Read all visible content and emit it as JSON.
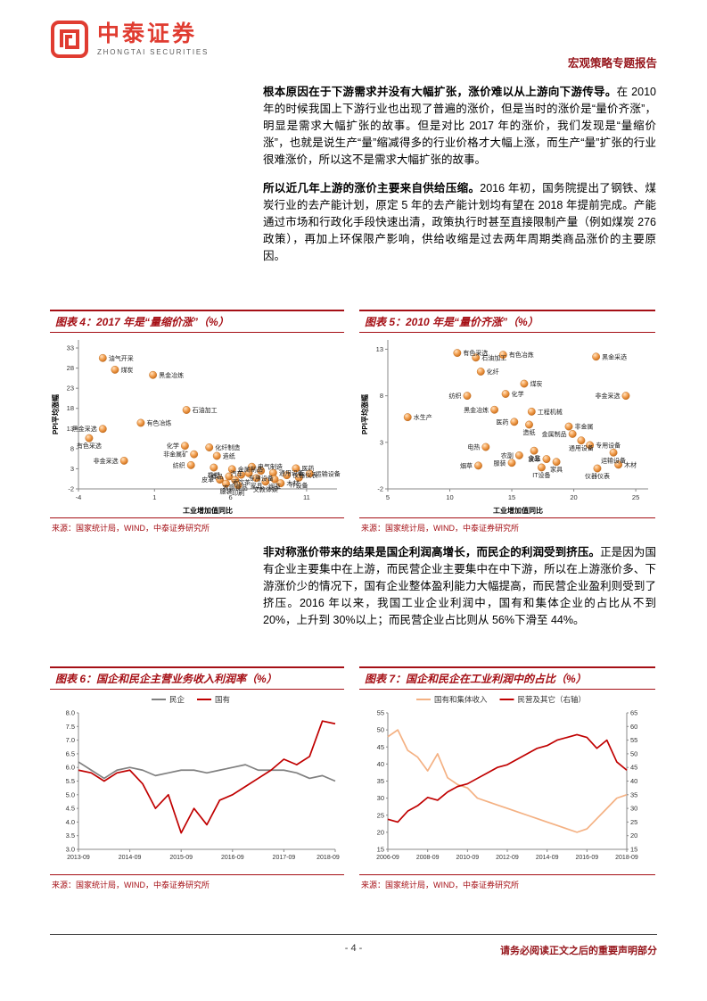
{
  "header": {
    "brand_cn": "中泰证券",
    "brand_en": "ZHONGTAI SECURITIES",
    "report_type": "宏观策略专题报告"
  },
  "paragraphs": [
    {
      "lead": "根本原因在于下游需求并没有大幅扩张，涨价难以从上游向下游传导。",
      "rest": "在 2010 年的时候我国上下游行业也出现了普遍的涨价，但是当时的涨价是“量价齐涨”，明显是需求大幅扩张的故事。但是对比 2017 年的涨价，我们发现是“量缩价涨”，也就是说生产“量”缩减得多的行业价格才大幅上涨，而生产“量”扩张的行业很难涨价，所以这不是需求大幅扩张的故事。"
    },
    {
      "lead": "所以近几年上游的涨价主要来自供给压缩。",
      "rest": "2016 年初，国务院提出了钢铁、煤炭行业的去产能计划，原定 5 年的去产能计划均有望在 2018 年提前完成。产能通过市场和行政化手段快速出清，政策执行时甚至直接限制产量（例如煤炭 276 政策），再加上环保限产影响，供给收缩是过去两年周期类商品涨价的主要原因。"
    },
    {
      "lead": "非对称涨价带来的结果是国企利润高增长，而民企的利润受到挤压。",
      "rest": "正是因为国有企业主要集中在上游，而民营企业主要集中在中下游，所以在上游涨价多、下游涨价少的情况下，国有企业整体盈利能力大幅提高，而民营企业盈利则受到了挤压。2016 年以来，我国工业企业利润中，国有和集体企业的占比从不到 20%，上升到 30%以上；而民营企业占比则从 56%下滑至 44%。"
    }
  ],
  "footer": {
    "page_number": "- 4 -",
    "disclaimer": "请务必阅读正文之后的重要声明部分"
  },
  "colors": {
    "brand_red": "#e03c31",
    "accent": "#a50f15",
    "series_red": "#c00000",
    "series_gray": "#808080",
    "series_orange": "#f4b183",
    "scatter_point": "#ed9a4f"
  },
  "chart_data": [
    {
      "type": "scatter",
      "title": "图表 4：2017 年是“量缩价涨”（%）",
      "source": "来源：国家统计局，WIND，中泰证券研究所",
      "xlabel": "工业增加值同比",
      "ylabel": "PPI平均涨幅",
      "xlim": [
        -4,
        13
      ],
      "ylim": [
        -2,
        35
      ],
      "xticks": [
        -4,
        1,
        6,
        11
      ],
      "yticks": [
        33,
        28,
        23,
        18,
        13,
        8,
        3,
        -2
      ],
      "points": [
        {
          "label": "油气开采",
          "x": -2.4,
          "y": 30.5,
          "lp": "r"
        },
        {
          "label": "煤炭",
          "x": -1.6,
          "y": 27.6,
          "lp": "r"
        },
        {
          "label": "黑金冶炼",
          "x": 0.9,
          "y": 26.3,
          "lp": "r"
        },
        {
          "label": "石油加工",
          "x": 3.1,
          "y": 17.6,
          "lp": "r"
        },
        {
          "label": "有色冶炼",
          "x": 0.1,
          "y": 14.4,
          "lp": "r"
        },
        {
          "label": "黑金采选",
          "x": -2.4,
          "y": 12.9,
          "lp": "l"
        },
        {
          "label": "有色采选",
          "x": -3.3,
          "y": 10.6,
          "lp": "b"
        },
        {
          "label": "化学",
          "x": 3.0,
          "y": 8.7,
          "lp": "l"
        },
        {
          "label": "化纤制造",
          "x": 4.6,
          "y": 8.3,
          "lp": "r"
        },
        {
          "label": "非金属矿",
          "x": 3.6,
          "y": 6.6,
          "lp": "l"
        },
        {
          "label": "造纸",
          "x": 5.1,
          "y": 6.2,
          "lp": "r"
        },
        {
          "label": "非金采选",
          "x": -1.0,
          "y": 5.0,
          "lp": "l"
        },
        {
          "label": "纺织",
          "x": 3.4,
          "y": 3.9,
          "lp": "l"
        },
        {
          "label": "橡塑",
          "x": 4.9,
          "y": 3.3,
          "lp": "b"
        },
        {
          "label": "金属制品",
          "x": 6.1,
          "y": 2.9,
          "lp": "r"
        },
        {
          "label": "电气制造",
          "x": 7.4,
          "y": 3.5,
          "lp": "r"
        },
        {
          "label": "医药",
          "x": 10.3,
          "y": 3.1,
          "lp": "r"
        },
        {
          "label": "专用设备",
          "x": 8.0,
          "y": 2.5,
          "lp": "b"
        },
        {
          "label": "通用设备",
          "x": 8.8,
          "y": 2.0,
          "lp": "r"
        },
        {
          "label": "汽车",
          "x": 7.2,
          "y": 1.9,
          "lp": "l"
        },
        {
          "label": "酒饮茶",
          "x": 6.7,
          "y": 1.5,
          "lp": "b"
        },
        {
          "label": "食品",
          "x": 5.9,
          "y": 1.1,
          "lp": "l"
        },
        {
          "label": "仪器仪表",
          "x": 9.7,
          "y": 1.4,
          "lp": "r"
        },
        {
          "label": "运输设备",
          "x": 11.2,
          "y": 1.8,
          "lp": "r"
        },
        {
          "label": "IT设备",
          "x": 10.5,
          "y": 0.8,
          "lp": "b"
        },
        {
          "label": "家具",
          "x": 7.7,
          "y": 0.7,
          "lp": "b"
        },
        {
          "label": "烟草",
          "x": 8.9,
          "y": 0.4,
          "lp": "b"
        },
        {
          "label": "农副食品",
          "x": 6.3,
          "y": 0.2,
          "lp": "b"
        },
        {
          "label": "皮革",
          "x": 5.3,
          "y": 0.3,
          "lp": "l"
        },
        {
          "label": "文教体娱",
          "x": 8.3,
          "y": -0.2,
          "lp": "b"
        },
        {
          "label": "服装",
          "x": 5.7,
          "y": -0.7,
          "lp": "b"
        },
        {
          "label": "印刷",
          "x": 6.5,
          "y": -1.1,
          "lp": "b"
        },
        {
          "label": "木材",
          "x": 9.3,
          "y": -0.6,
          "lp": "r"
        }
      ]
    },
    {
      "type": "scatter",
      "title": "图表 5：2010 年是“量价齐涨”（%）",
      "source": "来源：国家统计局，WIND，中泰证券研究所",
      "xlabel": "工业增加值同比",
      "ylabel": "PPI平均涨幅",
      "xlim": [
        5,
        26
      ],
      "ylim": [
        -2,
        14
      ],
      "xticks": [
        5,
        10,
        15,
        20,
        25
      ],
      "yticks": [
        13,
        8,
        3,
        -2
      ],
      "points": [
        {
          "label": "有色采选",
          "x": 10.6,
          "y": 12.6,
          "lp": "r"
        },
        {
          "label": "石油加工",
          "x": 12.1,
          "y": 12.1,
          "lp": "r"
        },
        {
          "label": "有色冶炼",
          "x": 14.3,
          "y": 12.4,
          "lp": "r"
        },
        {
          "label": "黑金采选",
          "x": 21.8,
          "y": 12.2,
          "lp": "r"
        },
        {
          "label": "化纤",
          "x": 12.5,
          "y": 10.6,
          "lp": "r"
        },
        {
          "label": "煤炭",
          "x": 16.0,
          "y": 9.3,
          "lp": "r"
        },
        {
          "label": "纺织",
          "x": 11.4,
          "y": 8.0,
          "lp": "l"
        },
        {
          "label": "化学",
          "x": 14.5,
          "y": 8.2,
          "lp": "r"
        },
        {
          "label": "非金采选",
          "x": 24.2,
          "y": 8.0,
          "lp": "l"
        },
        {
          "label": "黑金冶炼",
          "x": 13.6,
          "y": 6.5,
          "lp": "l"
        },
        {
          "label": "工程机械",
          "x": 16.6,
          "y": 6.3,
          "lp": "r"
        },
        {
          "label": "医药",
          "x": 15.2,
          "y": 5.2,
          "lp": "l"
        },
        {
          "label": "造纸",
          "x": 16.4,
          "y": 4.9,
          "lp": "b"
        },
        {
          "label": "水生产",
          "x": 6.6,
          "y": 5.7,
          "lp": "r"
        },
        {
          "label": "非金属",
          "x": 19.6,
          "y": 4.7,
          "lp": "r"
        },
        {
          "label": "金属制品",
          "x": 19.9,
          "y": 3.9,
          "lp": "l"
        },
        {
          "label": "通用设备",
          "x": 20.6,
          "y": 3.2,
          "lp": "b"
        },
        {
          "label": "专用设备",
          "x": 21.3,
          "y": 2.7,
          "lp": "r"
        },
        {
          "label": "电热",
          "x": 12.9,
          "y": 2.5,
          "lp": "l"
        },
        {
          "label": "食品",
          "x": 16.8,
          "y": 2.1,
          "lp": "b"
        },
        {
          "label": "农副",
          "x": 15.6,
          "y": 1.6,
          "lp": "l"
        },
        {
          "label": "运输设备",
          "x": 23.2,
          "y": 1.9,
          "lp": "b"
        },
        {
          "label": "皮革",
          "x": 17.8,
          "y": 1.2,
          "lp": "l"
        },
        {
          "label": "家具",
          "x": 18.6,
          "y": 0.9,
          "lp": "b"
        },
        {
          "label": "服装",
          "x": 15.0,
          "y": 0.8,
          "lp": "l"
        },
        {
          "label": "IT设备",
          "x": 17.4,
          "y": 0.3,
          "lp": "b"
        },
        {
          "label": "烟草",
          "x": 12.3,
          "y": 0.5,
          "lp": "l"
        },
        {
          "label": "仪器仪表",
          "x": 21.9,
          "y": 0.2,
          "lp": "b"
        },
        {
          "label": "木材",
          "x": 23.6,
          "y": 0.6,
          "lp": "r"
        }
      ]
    },
    {
      "type": "line",
      "title": "图表 6：国企和民企主营业务收入利润率（%）",
      "source": "来源：国家统计局，WIND，中泰证券研究所",
      "categories": [
        "2013-09",
        "2013-12",
        "2014-03",
        "2014-06",
        "2014-09",
        "2014-12",
        "2015-03",
        "2015-06",
        "2015-09",
        "2015-12",
        "2016-03",
        "2016-06",
        "2016-09",
        "2016-12",
        "2017-03",
        "2017-06",
        "2017-09",
        "2017-12",
        "2018-03",
        "2018-06",
        "2018-09"
      ],
      "xtick_indices": [
        0,
        4,
        8,
        12,
        16,
        20
      ],
      "ylim": [
        3,
        8
      ],
      "yticks": [
        8,
        7.5,
        7,
        6.5,
        6,
        5.5,
        5,
        4.5,
        4,
        3.5,
        3
      ],
      "ytick_decimals": 1,
      "legend_position": "top",
      "series": [
        {
          "name": "民企",
          "color": "#808080",
          "values": [
            6.2,
            5.9,
            5.6,
            5.9,
            6.0,
            5.9,
            5.7,
            5.8,
            5.9,
            5.9,
            5.8,
            5.9,
            6.0,
            6.1,
            5.9,
            5.9,
            5.9,
            5.8,
            5.6,
            5.7,
            5.5
          ]
        },
        {
          "name": "国有",
          "color": "#c00000",
          "values": [
            5.9,
            5.8,
            5.5,
            5.8,
            5.9,
            5.4,
            4.5,
            5.0,
            3.6,
            4.5,
            3.9,
            4.8,
            5.0,
            5.3,
            5.6,
            5.9,
            6.3,
            6.1,
            6.4,
            7.7,
            7.6
          ]
        }
      ]
    },
    {
      "type": "line",
      "title": "图表 7：国企和民企在工业利润中的占比（%）",
      "source": "来源：国家统计局，WIND，中泰证券研究所",
      "categories": [
        "2006-09",
        "2007-03",
        "2007-09",
        "2008-03",
        "2008-09",
        "2009-03",
        "2009-09",
        "2010-03",
        "2010-09",
        "2011-03",
        "2011-09",
        "2012-03",
        "2012-09",
        "2013-03",
        "2013-09",
        "2014-03",
        "2014-09",
        "2015-03",
        "2015-09",
        "2016-03",
        "2016-09",
        "2017-03",
        "2017-09",
        "2018-03",
        "2018-09"
      ],
      "xtick_indices": [
        0,
        4,
        8,
        12,
        16,
        20,
        24
      ],
      "ylim": [
        15,
        55
      ],
      "yticks": [
        55,
        50,
        45,
        40,
        35,
        30,
        25,
        20,
        15
      ],
      "y2lim": [
        15,
        65
      ],
      "y2ticks": [
        65,
        60,
        55,
        50,
        45,
        40,
        35,
        30,
        25,
        20,
        15
      ],
      "legend_position": "top",
      "series": [
        {
          "name": "国有和集体收入",
          "color": "#f4b183",
          "values": [
            48,
            50,
            44,
            42,
            38,
            43,
            36,
            34,
            33,
            30,
            29,
            28,
            27,
            26,
            25,
            24,
            23,
            22,
            21,
            20,
            21,
            24,
            27,
            30,
            31
          ]
        },
        {
          "name": "民营及其它（右轴）",
          "color": "#c00000",
          "axis": "right",
          "values": [
            26,
            25,
            29,
            31,
            34,
            33,
            36,
            38,
            39,
            41,
            43,
            45,
            46,
            48,
            50,
            52,
            53,
            55,
            56,
            57,
            56,
            52,
            55,
            47,
            44
          ]
        }
      ]
    }
  ]
}
